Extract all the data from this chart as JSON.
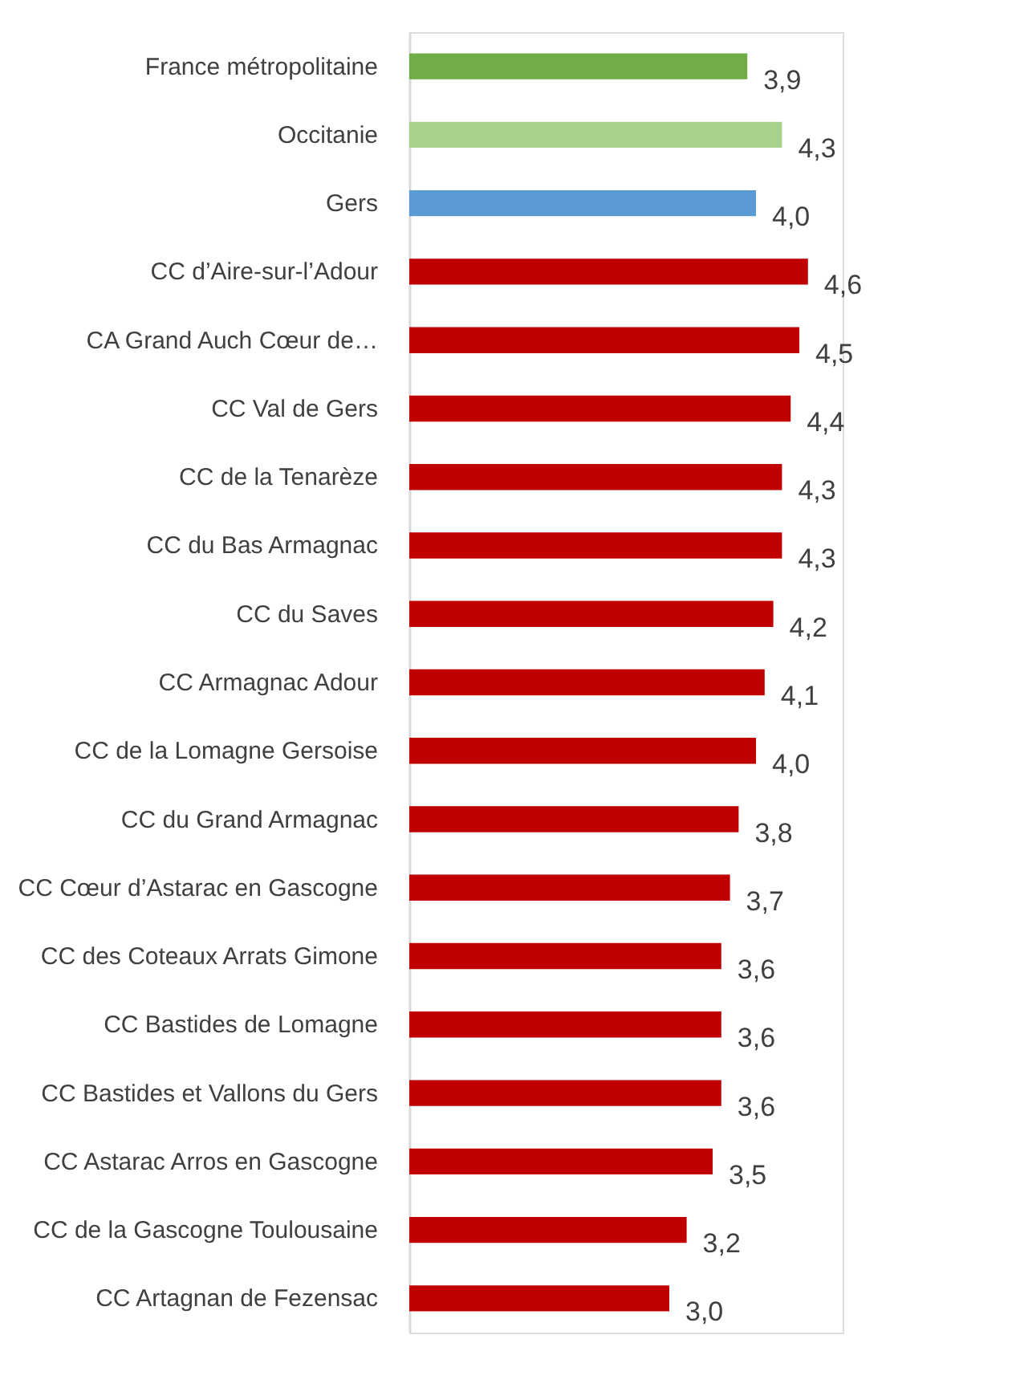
{
  "chart_data": {
    "type": "bar",
    "orientation": "horizontal",
    "tick_labels": "y",
    "grid": false,
    "xlim": [
      0,
      5
    ],
    "categories": [
      "France métropolitaine",
      "Occitanie",
      "Gers",
      "CC d’Aire-sur-l’Adour",
      "CA Grand Auch Cœur de…",
      "CC Val de Gers",
      "CC de la Tenarèze",
      "CC du Bas Armagnac",
      "CC du Saves",
      "CC Armagnac Adour",
      "CC de la Lomagne Gersoise",
      "CC du Grand Armagnac",
      "CC Cœur d’Astarac en Gascogne",
      "CC des Coteaux Arrats Gimone",
      "CC Bastides de Lomagne",
      "CC Bastides et Vallons du Gers",
      "CC Astarac Arros en Gascogne",
      "CC de la Gascogne Toulousaine",
      "CC Artagnan de Fezensac"
    ],
    "values": [
      3.9,
      4.3,
      4.0,
      4.6,
      4.5,
      4.4,
      4.3,
      4.3,
      4.2,
      4.1,
      4.0,
      3.8,
      3.7,
      3.6,
      3.6,
      3.6,
      3.5,
      3.2,
      3.0
    ],
    "value_labels": [
      "3,9",
      "4,3",
      "4,0",
      "4,6",
      "4,5",
      "4,4",
      "4,3",
      "4,3",
      "4,2",
      "4,1",
      "4,0",
      "3,8",
      "3,7",
      "3,6",
      "3,6",
      "3,6",
      "3,5",
      "3,2",
      "3,0"
    ],
    "colors": [
      "#70ad47",
      "#a9d18e",
      "#5b9bd5",
      "#c00000",
      "#c00000",
      "#c00000",
      "#c00000",
      "#c00000",
      "#c00000",
      "#c00000",
      "#c00000",
      "#c00000",
      "#c00000",
      "#c00000",
      "#c00000",
      "#c00000",
      "#c00000",
      "#c00000",
      "#c00000"
    ]
  }
}
